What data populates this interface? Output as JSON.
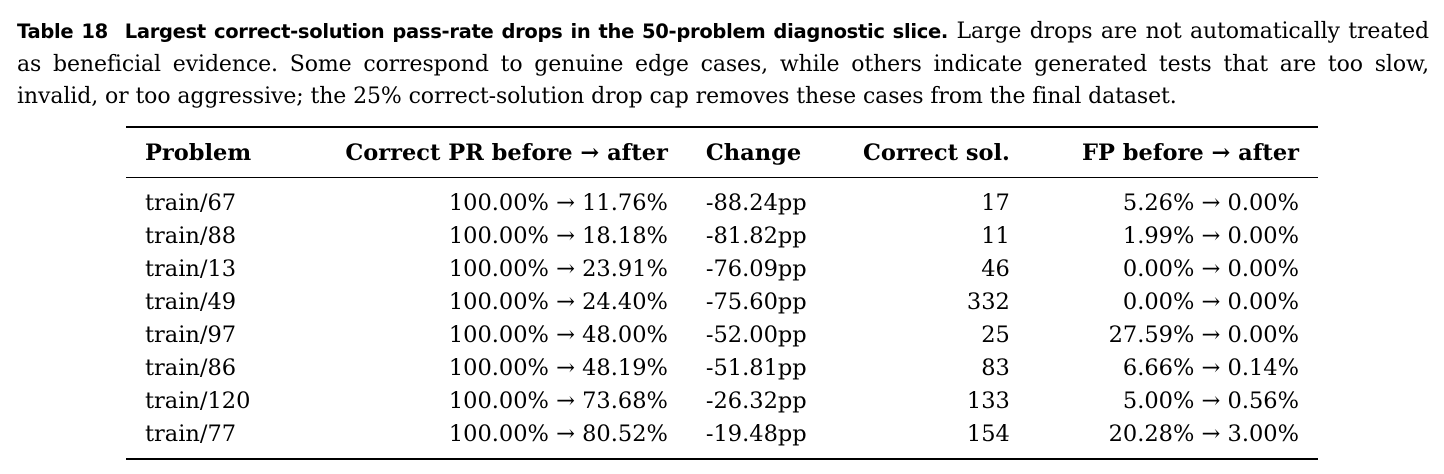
{
  "caption": {
    "label": "Table 18",
    "title": "Largest correct-solution pass-rate drops in the 50-problem diagnostic slice.",
    "text": "Large drops are not automatically treated as beneficial evidence. Some correspond to genuine edge cases, while others indicate generated tests that are too slow, invalid, or too aggressive; the 25% correct-solution drop cap removes these cases from the final dataset."
  },
  "table": {
    "headers": [
      "Problem",
      "Correct PR before → after",
      "Change",
      "Correct sol.",
      "FP before → after"
    ],
    "rows": [
      [
        "train/67",
        "100.00% → 11.76%",
        "-88.24pp",
        "17",
        "5.26% → 0.00%"
      ],
      [
        "train/88",
        "100.00% → 18.18%",
        "-81.82pp",
        "11",
        "1.99% → 0.00%"
      ],
      [
        "train/13",
        "100.00% → 23.91%",
        "-76.09pp",
        "46",
        "0.00% → 0.00%"
      ],
      [
        "train/49",
        "100.00% → 24.40%",
        "-75.60pp",
        "332",
        "0.00% → 0.00%"
      ],
      [
        "train/97",
        "100.00% → 48.00%",
        "-52.00pp",
        "25",
        "27.59% → 0.00%"
      ],
      [
        "train/86",
        "100.00% → 48.19%",
        "-51.81pp",
        "83",
        "6.66% → 0.14%"
      ],
      [
        "train/120",
        "100.00% → 73.68%",
        "-26.32pp",
        "133",
        "5.00% → 0.56%"
      ],
      [
        "train/77",
        "100.00% → 80.52%",
        "-19.48pp",
        "154",
        "20.28% → 3.00%"
      ]
    ]
  }
}
